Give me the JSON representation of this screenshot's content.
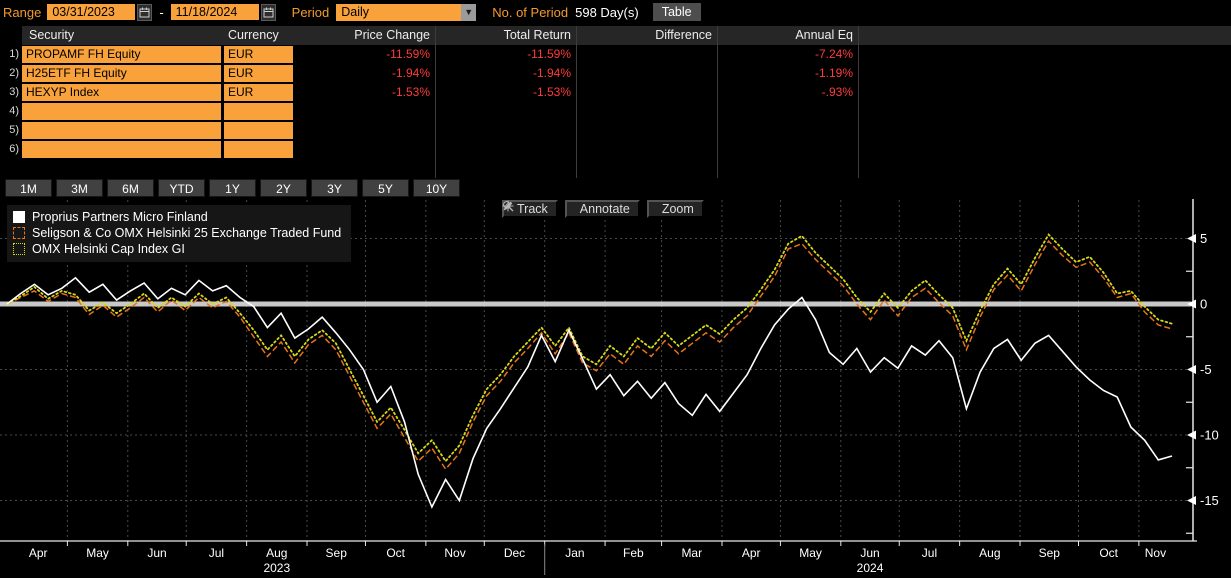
{
  "toolbar": {
    "range_label": "Range",
    "range_start": "03/31/2023",
    "range_separator": "-",
    "range_end": "11/18/2024",
    "period_label": "Period",
    "period_value": "Daily",
    "no_of_period_label": "No. of Period",
    "no_of_period_value": "598 Day(s)",
    "table_button": "Table"
  },
  "table": {
    "columns": [
      "Security",
      "Currency",
      "Price Change",
      "Total Return",
      "Difference",
      "Annual Eq"
    ],
    "rows": [
      {
        "num": "1)",
        "security": "PROPAMF FH Equity",
        "currency": "EUR",
        "price_change": "-11.59%",
        "total_return": "-11.59%",
        "difference": "",
        "annual_eq": "-7.24%"
      },
      {
        "num": "2)",
        "security": "H25ETF FH Equity",
        "currency": "EUR",
        "price_change": "-1.94%",
        "total_return": "-1.94%",
        "difference": "",
        "annual_eq": "-1.19%"
      },
      {
        "num": "3)",
        "security": "HEXYP Index",
        "currency": "EUR",
        "price_change": "-1.53%",
        "total_return": "-1.53%",
        "difference": "",
        "annual_eq": "-.93%"
      },
      {
        "num": "4)",
        "security": "",
        "currency": "",
        "price_change": "",
        "total_return": "",
        "difference": "",
        "annual_eq": ""
      },
      {
        "num": "5)",
        "security": "",
        "currency": "",
        "price_change": "",
        "total_return": "",
        "difference": "",
        "annual_eq": ""
      },
      {
        "num": "6)",
        "security": "",
        "currency": "",
        "price_change": "",
        "total_return": "",
        "difference": "",
        "annual_eq": ""
      }
    ]
  },
  "period_buttons": [
    "1M",
    "3M",
    "6M",
    "YTD",
    "1Y",
    "2Y",
    "3Y",
    "5Y",
    "10Y"
  ],
  "chart_toolbar": [
    {
      "icon": "track-icon",
      "label": "Track"
    },
    {
      "icon": "annotate-icon",
      "label": "Annotate"
    },
    {
      "icon": "zoom-icon",
      "label": "Zoom"
    }
  ],
  "colors": {
    "accent_orange": "#f9a13a",
    "label_orange": "#f39a2d",
    "negative_red": "#ff3b3b",
    "zero_line": "#c9c9c9",
    "grid": "#4a4a4a",
    "axis": "#e8e8e8"
  },
  "chart_data": {
    "type": "line",
    "title": "",
    "xlabel": "",
    "ylabel": "",
    "x_range_label": "03/31/2023 - 11/18/2024",
    "ylim": [
      -17.5,
      7.5
    ],
    "yticks": [
      5,
      0,
      -5,
      -10,
      -15
    ],
    "minor_yticks": [
      2.5,
      -2.5,
      -7.5,
      -12.5,
      -17.5
    ],
    "grid": true,
    "legend_position": "top-left",
    "total_days": 598,
    "months": [
      "Apr",
      "May",
      "Jun",
      "Jul",
      "Aug",
      "Sep",
      "Oct",
      "Nov",
      "Dec",
      "Jan",
      "Feb",
      "Mar",
      "Apr",
      "May",
      "Jun",
      "Jul",
      "Aug",
      "Sep",
      "Oct",
      "Nov"
    ],
    "month_boundaries_days": [
      1,
      31,
      62,
      92,
      123,
      154,
      184,
      215,
      245,
      276,
      307,
      336,
      367,
      397,
      428,
      458,
      489,
      520,
      550,
      581
    ],
    "year_labels": [
      {
        "label": "2023",
        "month_index": 4
      },
      {
        "label": "2024",
        "month_index": 14
      }
    ],
    "year_divider_month_index": 9,
    "series": [
      {
        "name": "Proprius Partners Micro Finland",
        "color": "#ffffff",
        "style": "solid",
        "end_value": -11.59,
        "values": [
          0.0,
          0.8,
          1.5,
          0.7,
          1.2,
          2.0,
          0.9,
          1.5,
          0.3,
          1.0,
          1.6,
          0.4,
          1.2,
          0.7,
          1.8,
          1.0,
          1.4,
          0.5,
          -0.2,
          -1.8,
          -0.7,
          -2.6,
          -1.9,
          -1.0,
          -2.2,
          -3.5,
          -5.0,
          -7.5,
          -6.3,
          -9.0,
          -13.0,
          -15.5,
          -13.4,
          -15.0,
          -11.8,
          -9.5,
          -8.0,
          -6.4,
          -4.8,
          -2.4,
          -4.4,
          -2.0,
          -4.2,
          -6.5,
          -5.4,
          -7.0,
          -5.9,
          -7.2,
          -6.0,
          -7.6,
          -8.5,
          -6.9,
          -8.2,
          -6.8,
          -5.4,
          -3.4,
          -1.6,
          -0.4,
          0.5,
          -1.2,
          -3.7,
          -4.6,
          -3.4,
          -5.2,
          -4.1,
          -4.9,
          -3.2,
          -3.9,
          -2.8,
          -4.1,
          -8.0,
          -5.2,
          -3.4,
          -2.7,
          -4.3,
          -3.0,
          -2.4,
          -3.6,
          -4.8,
          -5.8,
          -6.6,
          -7.1,
          -9.4,
          -10.4,
          -11.9,
          -11.6
        ]
      },
      {
        "name": "Seligson & Co OMX Helsinki 25 Exchange Traded Fund",
        "color": "#e8731a",
        "style": "dashed",
        "end_value": -1.94,
        "values": [
          0.0,
          0.5,
          1.0,
          0.2,
          0.8,
          0.5,
          -0.8,
          -0.1,
          -1.0,
          -0.3,
          0.5,
          -0.6,
          0.3,
          -0.5,
          0.5,
          -0.3,
          0.2,
          -1.0,
          -2.5,
          -4.0,
          -2.9,
          -4.5,
          -3.1,
          -2.4,
          -3.5,
          -5.5,
          -7.5,
          -9.5,
          -8.4,
          -10.2,
          -12.0,
          -11.0,
          -12.6,
          -11.4,
          -9.0,
          -7.0,
          -5.9,
          -4.5,
          -3.4,
          -2.2,
          -3.8,
          -2.2,
          -4.5,
          -5.1,
          -3.8,
          -4.6,
          -3.2,
          -4.0,
          -2.8,
          -3.8,
          -3.0,
          -2.2,
          -2.9,
          -1.8,
          -0.9,
          0.6,
          2.1,
          4.2,
          4.6,
          3.4,
          2.4,
          1.4,
          0.0,
          -1.2,
          0.3,
          -0.9,
          0.5,
          1.2,
          0.1,
          -0.9,
          -3.5,
          -1.0,
          1.1,
          2.2,
          1.0,
          3.0,
          4.8,
          3.7,
          2.8,
          3.2,
          2.0,
          0.5,
          0.8,
          -0.6,
          -1.6,
          -1.9
        ]
      },
      {
        "name": "OMX Helsinki Cap Index GI",
        "color": "#d8d818",
        "style": "dotted",
        "end_value": -1.53,
        "values": [
          0.0,
          0.6,
          1.3,
          0.4,
          1.0,
          0.7,
          -0.5,
          0.1,
          -0.7,
          0.0,
          0.8,
          -0.3,
          0.5,
          -0.2,
          0.8,
          0.0,
          0.5,
          -0.7,
          -2.0,
          -3.5,
          -2.4,
          -4.0,
          -2.7,
          -2.0,
          -3.0,
          -5.0,
          -7.0,
          -9.0,
          -7.9,
          -9.6,
          -11.4,
          -10.4,
          -12.0,
          -10.8,
          -8.5,
          -6.5,
          -5.4,
          -4.0,
          -2.9,
          -1.8,
          -3.2,
          -1.8,
          -4.0,
          -4.6,
          -3.2,
          -4.0,
          -2.6,
          -3.4,
          -2.2,
          -3.2,
          -2.4,
          -1.6,
          -2.3,
          -1.2,
          -0.3,
          1.1,
          2.6,
          4.6,
          5.2,
          3.9,
          2.9,
          1.9,
          0.5,
          -0.6,
          0.8,
          -0.3,
          1.0,
          1.8,
          0.7,
          -0.3,
          -2.8,
          -0.5,
          1.5,
          2.7,
          1.5,
          3.5,
          5.3,
          4.2,
          3.2,
          3.6,
          2.4,
          0.8,
          1.0,
          -0.2,
          -1.2,
          -1.5
        ]
      }
    ]
  }
}
